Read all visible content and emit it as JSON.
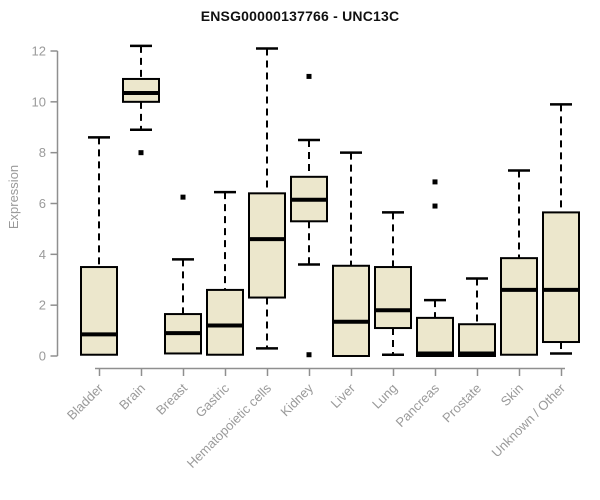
{
  "chart_data": {
    "type": "boxplot",
    "title": "ENSG00000137766 - UNC13C",
    "ylabel": "Expression",
    "xlabel": "",
    "ylim": [
      0,
      12
    ],
    "yticks": [
      0,
      2,
      4,
      6,
      8,
      10,
      12
    ],
    "grid": false,
    "legend": "none",
    "categories": [
      "Bladder",
      "Brain",
      "Breast",
      "Gastric",
      "Hematopoietic cells",
      "Kidney",
      "Liver",
      "Lung",
      "Pancreas",
      "Prostate",
      "Skin",
      "Unknown / Other"
    ],
    "series": [
      {
        "name": "Bladder",
        "low": 0.05,
        "q1": 0.05,
        "median": 0.85,
        "q3": 3.5,
        "high": 8.6,
        "outliers": []
      },
      {
        "name": "Brain",
        "low": 8.9,
        "q1": 10.0,
        "median": 10.35,
        "q3": 10.9,
        "high": 12.2,
        "outliers": [
          8.0
        ]
      },
      {
        "name": "Breast",
        "low": 0.1,
        "q1": 0.1,
        "median": 0.9,
        "q3": 1.65,
        "high": 3.8,
        "outliers": [
          6.25
        ]
      },
      {
        "name": "Gastric",
        "low": 0.05,
        "q1": 0.05,
        "median": 1.2,
        "q3": 2.6,
        "high": 6.45,
        "outliers": []
      },
      {
        "name": "Hematopoietic cells",
        "low": 0.3,
        "q1": 2.3,
        "median": 4.6,
        "q3": 6.4,
        "high": 12.1,
        "outliers": []
      },
      {
        "name": "Kidney",
        "low": 3.6,
        "q1": 5.3,
        "median": 6.15,
        "q3": 7.05,
        "high": 8.5,
        "outliers": [
          11.0,
          0.05
        ]
      },
      {
        "name": "Liver",
        "low": 0.0,
        "q1": 0.0,
        "median": 1.35,
        "q3": 3.55,
        "high": 8.0,
        "outliers": []
      },
      {
        "name": "Lung",
        "low": 0.05,
        "q1": 1.1,
        "median": 1.8,
        "q3": 3.5,
        "high": 5.65,
        "outliers": []
      },
      {
        "name": "Pancreas",
        "low": 0.0,
        "q1": 0.0,
        "median": 0.1,
        "q3": 1.5,
        "high": 2.2,
        "outliers": [
          6.85,
          5.9
        ]
      },
      {
        "name": "Prostate",
        "low": 0.0,
        "q1": 0.0,
        "median": 0.1,
        "q3": 1.25,
        "high": 3.05,
        "outliers": []
      },
      {
        "name": "Skin",
        "low": 0.05,
        "q1": 0.05,
        "median": 2.6,
        "q3": 3.85,
        "high": 7.3,
        "outliers": []
      },
      {
        "name": "Unknown / Other",
        "low": 0.1,
        "q1": 0.55,
        "median": 2.6,
        "q3": 5.65,
        "high": 9.9,
        "outliers": []
      }
    ],
    "colors": {
      "box_fill": "#ECE7CC",
      "box_stroke": "#000000",
      "median": "#000000",
      "whisker": "#000000",
      "outlier": "#000000",
      "axis": "#8f8f8f",
      "tick_label": "#9a9a9a",
      "title": "#111111",
      "background": "#ffffff"
    }
  }
}
